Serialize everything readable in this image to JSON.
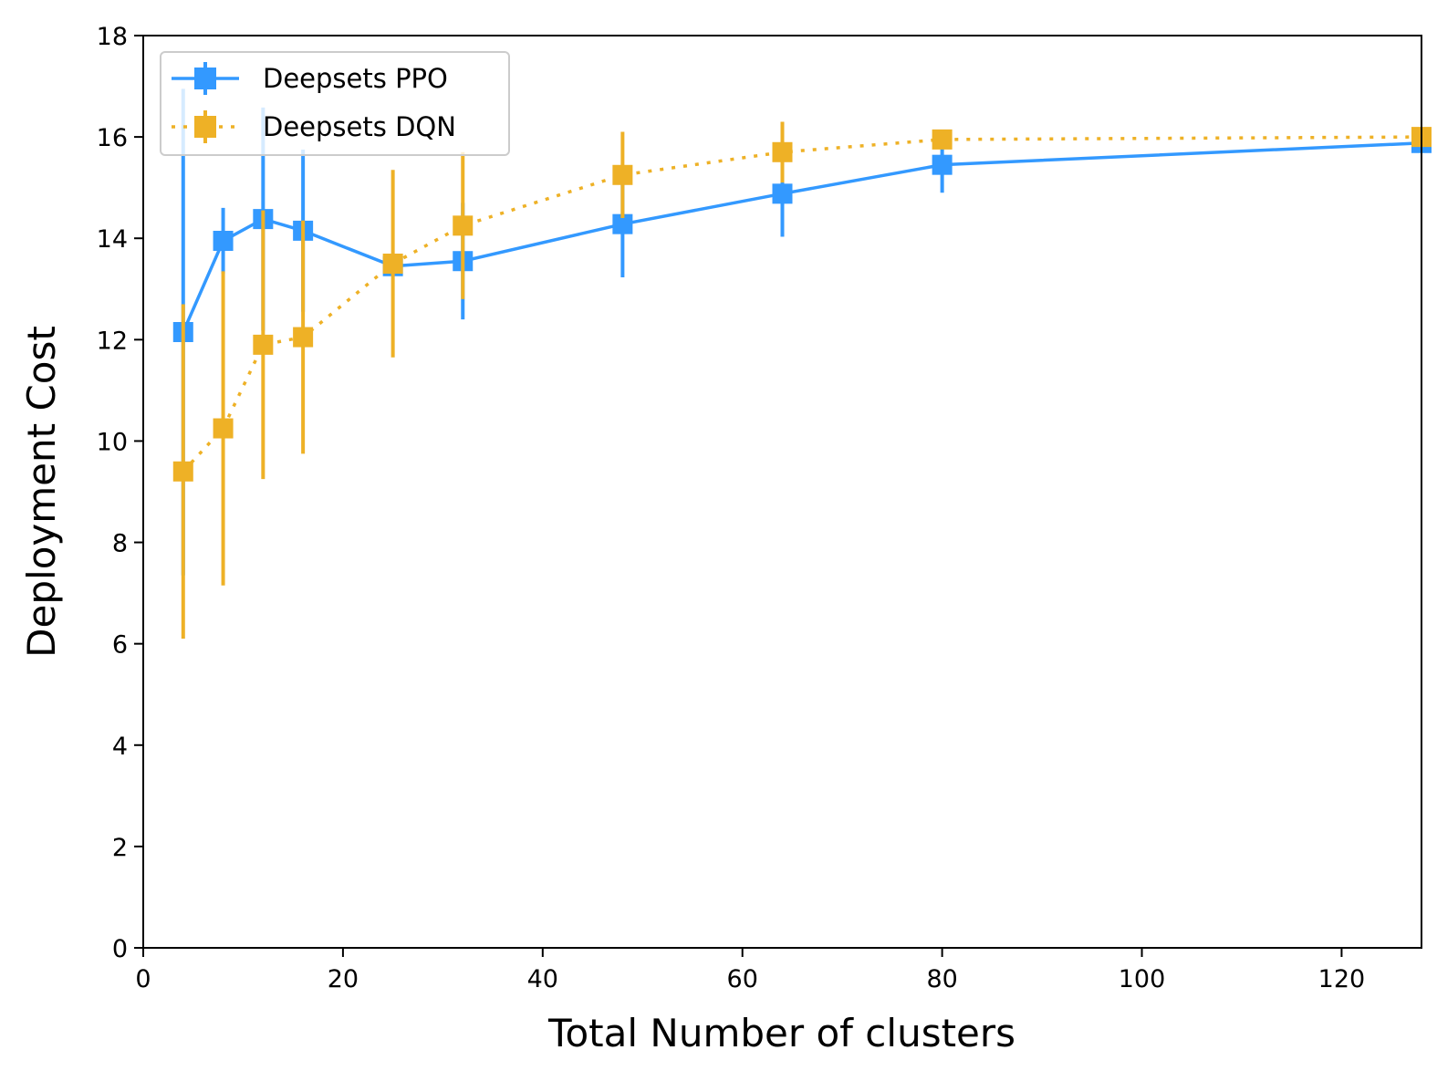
{
  "chart_data": {
    "type": "line",
    "title": "",
    "xlabel": "Total Number of clusters",
    "ylabel": "Deployment Cost",
    "xlim": [
      0,
      128
    ],
    "ylim": [
      0,
      18
    ],
    "xticks": [
      0,
      20,
      40,
      60,
      80,
      100,
      120
    ],
    "yticks": [
      0,
      2,
      4,
      6,
      8,
      10,
      12,
      14,
      16,
      18
    ],
    "grid": false,
    "legend_position": "upper-left",
    "series": [
      {
        "name": "Deepsets PPO",
        "color": "#3399ff",
        "line_style": "solid",
        "marker": "square",
        "x": [
          4,
          8,
          12,
          16,
          25,
          32,
          48,
          64,
          80,
          128
        ],
        "y": [
          12.15,
          13.95,
          14.38,
          14.15,
          13.45,
          13.55,
          14.28,
          14.88,
          15.45,
          15.88
        ],
        "yerr": [
          4.8,
          0.65,
          2.2,
          1.6,
          0.15,
          1.15,
          1.05,
          0.85,
          0.55,
          0.1
        ]
      },
      {
        "name": "Deepsets DQN",
        "color": "#eeb126",
        "line_style": "dotted",
        "marker": "square",
        "x": [
          4,
          8,
          12,
          16,
          25,
          32,
          48,
          64,
          80,
          128
        ],
        "y": [
          9.4,
          10.25,
          11.9,
          12.05,
          13.5,
          14.25,
          15.25,
          15.7,
          15.95,
          16.0
        ],
        "yerr": [
          3.3,
          3.1,
          2.65,
          2.3,
          1.85,
          1.45,
          0.85,
          0.6,
          0.05,
          0.05
        ]
      }
    ]
  }
}
